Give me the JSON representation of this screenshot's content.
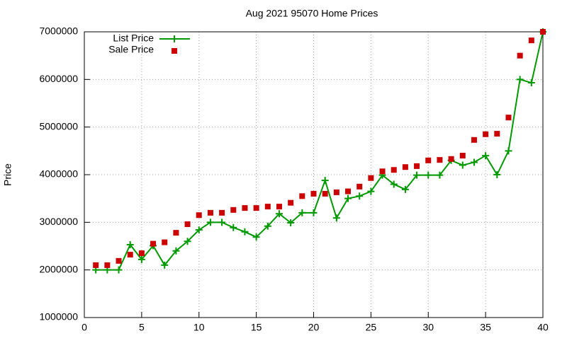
{
  "chart_data": {
    "type": "line",
    "title": "Aug 2021 95070 Home Prices",
    "y_label": "Price",
    "x": [
      1,
      2,
      3,
      4,
      5,
      6,
      7,
      8,
      9,
      10,
      11,
      12,
      13,
      14,
      15,
      16,
      17,
      18,
      19,
      20,
      21,
      22,
      23,
      24,
      25,
      26,
      27,
      28,
      29,
      30,
      31,
      32,
      33,
      34,
      35,
      36,
      37,
      38,
      39,
      40
    ],
    "series": [
      {
        "name": "List Price",
        "color": "#009900",
        "mode": "lines+markers",
        "marker": "plus",
        "values": [
          2000000,
          2000000,
          2000000,
          2530000,
          2220000,
          2510000,
          2100000,
          2400000,
          2600000,
          2840000,
          3000000,
          3000000,
          2890000,
          2800000,
          2690000,
          2920000,
          3180000,
          2990000,
          3200000,
          3200000,
          3880000,
          3090000,
          3500000,
          3550000,
          3650000,
          3990000,
          3800000,
          3690000,
          3990000,
          3990000,
          3990000,
          4300000,
          4200000,
          4260000,
          4400000,
          4000000,
          4500000,
          6000000,
          5930000,
          7000000
        ]
      },
      {
        "name": "Sale Price",
        "color": "#cc0000",
        "mode": "markers",
        "marker": "square",
        "values": [
          2100000,
          2100000,
          2190000,
          2320000,
          2350000,
          2550000,
          2580000,
          2780000,
          2960000,
          3150000,
          3200000,
          3200000,
          3260000,
          3300000,
          3300000,
          3330000,
          3330000,
          3410000,
          3550000,
          3600000,
          3600000,
          3630000,
          3650000,
          3750000,
          3930000,
          4070000,
          4100000,
          4160000,
          4180000,
          4300000,
          4310000,
          4330000,
          4400000,
          4730000,
          4850000,
          4860000,
          5200000,
          6500000,
          6820000,
          7000000
        ]
      }
    ],
    "xlim": [
      0,
      40
    ],
    "xticks": [
      0,
      5,
      10,
      15,
      20,
      25,
      30,
      35,
      40
    ],
    "ylim": [
      1000000,
      7000000
    ],
    "yticks": [
      1000000,
      2000000,
      3000000,
      4000000,
      5000000,
      6000000,
      7000000
    ],
    "grid": true,
    "legend": "top-left"
  }
}
